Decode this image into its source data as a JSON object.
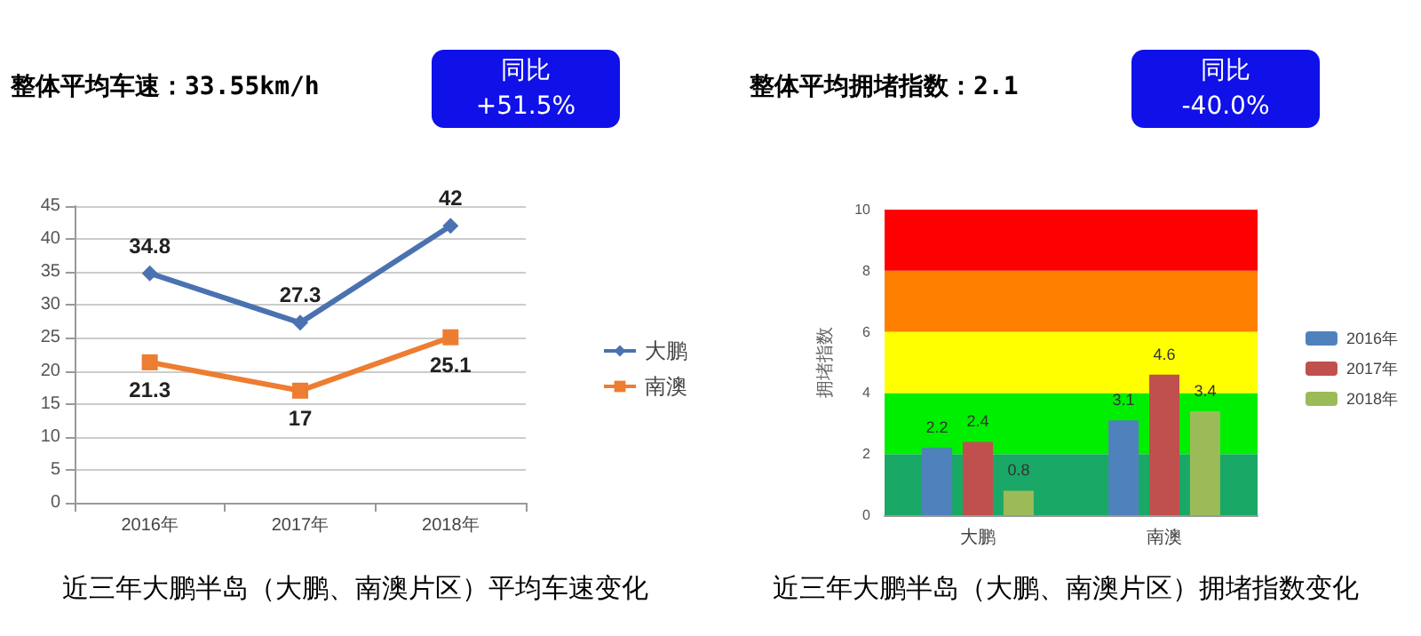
{
  "chart_data": [
    {
      "type": "line",
      "title": "整体平均车速：33.55km/h",
      "annotations": [
        "同比",
        "+51.5%",
        "近三年大鹏半岛（大鹏、南澳片区）平均车速变化"
      ],
      "categories": [
        "2016年",
        "2017年",
        "2018年"
      ],
      "series": [
        {
          "name": "大鹏",
          "color": "#4a72b0",
          "marker": "diamond",
          "values": [
            34.8,
            27.3,
            42
          ]
        },
        {
          "name": "南澳",
          "color": "#ed7d31",
          "marker": "square",
          "values": [
            21.3,
            17,
            25.1
          ]
        }
      ],
      "ylim": [
        0,
        45
      ],
      "yticks": [
        0,
        5,
        10,
        15,
        20,
        25,
        30,
        35,
        40,
        45
      ],
      "grid": "y",
      "legend": "right",
      "data_labels": true
    },
    {
      "type": "bar",
      "title": "整体平均拥堵指数：2.1",
      "annotations": [
        "同比",
        "-40.0%",
        "近三年大鹏半岛（大鹏、南澳片区）拥堵指数变化"
      ],
      "ylabel": "拥堵指数",
      "categories": [
        "大鹏",
        "南澳"
      ],
      "series": [
        {
          "name": "2016年",
          "color": "#4f81bd",
          "values": [
            2.2,
            3.1
          ]
        },
        {
          "name": "2017年",
          "color": "#c0504d",
          "values": [
            2.4,
            4.6
          ]
        },
        {
          "name": "2018年",
          "color": "#9bbb59",
          "values": [
            0.8,
            3.4
          ]
        }
      ],
      "ylim": [
        0,
        10
      ],
      "yticks": [
        0,
        2,
        4,
        6,
        8,
        10
      ],
      "legend": "right",
      "data_labels": true,
      "bands": [
        {
          "axis": "y",
          "from": 0,
          "to": 2,
          "color": "#1aa866"
        },
        {
          "axis": "y",
          "from": 2,
          "to": 4,
          "color": "#00ee00"
        },
        {
          "axis": "y",
          "from": 4,
          "to": 6,
          "color": "#ffff00"
        },
        {
          "axis": "y",
          "from": 6,
          "to": 8,
          "color": "#ff8000"
        },
        {
          "axis": "y",
          "from": 8,
          "to": 10,
          "color": "#ff0000"
        }
      ]
    }
  ]
}
